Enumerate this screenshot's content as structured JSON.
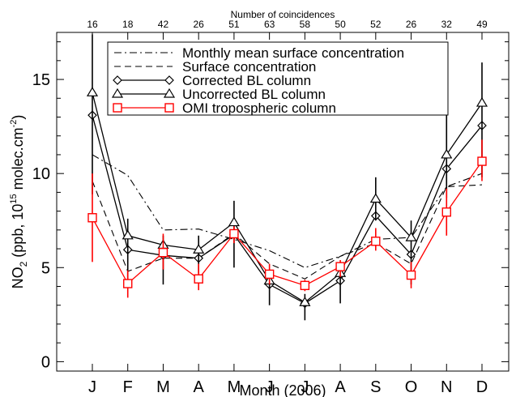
{
  "chart_data": {
    "type": "line",
    "title": "",
    "xlabel": "Month (2006)",
    "ylabel": "NO₂ (ppb, 10¹⁵ molec.cm⁻²)",
    "ylabel_parts": {
      "a": "NO",
      "sub": "2",
      "b": " (ppb, 10",
      "sup1": "15",
      "c": " molec.cm",
      "sup2": "-2",
      "d": ")"
    },
    "top_axis_label": "Number of coincidences",
    "categories": [
      "J",
      "F",
      "M",
      "A",
      "M",
      "J",
      "J",
      "A",
      "S",
      "O",
      "N",
      "D"
    ],
    "coincidences": [
      "16",
      "18",
      "42",
      "26",
      "51",
      "63",
      "58",
      "50",
      "52",
      "26",
      "32",
      "49"
    ],
    "ylim": [
      -0.5,
      17.5
    ],
    "yticks": [
      0,
      5,
      10,
      15
    ],
    "grid": false,
    "legend_position": "top-right",
    "series": [
      {
        "name": "Monthly mean surface concentration",
        "style": "dashdot",
        "color": "#000000",
        "marker": "none",
        "values": [
          11.0,
          9.9,
          7.0,
          7.05,
          6.5,
          5.9,
          5.0,
          5.6,
          6.5,
          6.6,
          9.3,
          10.0
        ]
      },
      {
        "name": "Surface concentration",
        "style": "dashed",
        "color": "#000000",
        "marker": "none",
        "values": [
          9.6,
          4.8,
          5.5,
          5.5,
          6.8,
          5.2,
          4.4,
          5.6,
          6.3,
          5.2,
          9.3,
          9.4
        ]
      },
      {
        "name": "Corrected BL column",
        "style": "solid",
        "color": "#000000",
        "marker": "diamond",
        "values": [
          13.1,
          5.95,
          5.65,
          5.5,
          6.75,
          4.1,
          3.1,
          4.3,
          7.75,
          5.7,
          10.25,
          12.55
        ]
      },
      {
        "name": "Uncorrected BL column",
        "style": "solid",
        "color": "#000000",
        "marker": "triangle",
        "values": [
          14.3,
          6.7,
          6.2,
          5.95,
          7.4,
          4.3,
          3.15,
          4.7,
          8.65,
          6.6,
          11.0,
          13.75
        ],
        "errors": [
          [
            8.9,
            17.4
          ],
          [
            4.3,
            7.6
          ],
          [
            4.1,
            6.7
          ],
          [
            4.7,
            6.7
          ],
          [
            5.0,
            8.55
          ],
          [
            3.0,
            4.7
          ],
          [
            2.2,
            3.6
          ],
          [
            3.1,
            5.3
          ],
          [
            7.5,
            9.8
          ],
          [
            4.1,
            7.5
          ],
          [
            8.7,
            13.1
          ],
          [
            9.8,
            15.9
          ]
        ]
      },
      {
        "name": "OMI tropospheric column",
        "style": "solid",
        "color": "#ff0000",
        "marker": "square",
        "values": [
          7.65,
          4.15,
          5.8,
          4.4,
          6.8,
          4.65,
          4.05,
          5.05,
          6.4,
          4.6,
          7.95,
          10.65
        ],
        "errors": [
          [
            5.3,
            10.0
          ],
          [
            3.4,
            4.85
          ],
          [
            4.9,
            6.8
          ],
          [
            3.8,
            5.2
          ],
          [
            6.3,
            7.2
          ],
          [
            4.1,
            5.2
          ],
          [
            3.75,
            4.35
          ],
          [
            4.5,
            5.4
          ],
          [
            5.9,
            7.1
          ],
          [
            3.9,
            5.3
          ],
          [
            6.7,
            9.2
          ],
          [
            9.6,
            11.8
          ]
        ]
      }
    ]
  }
}
